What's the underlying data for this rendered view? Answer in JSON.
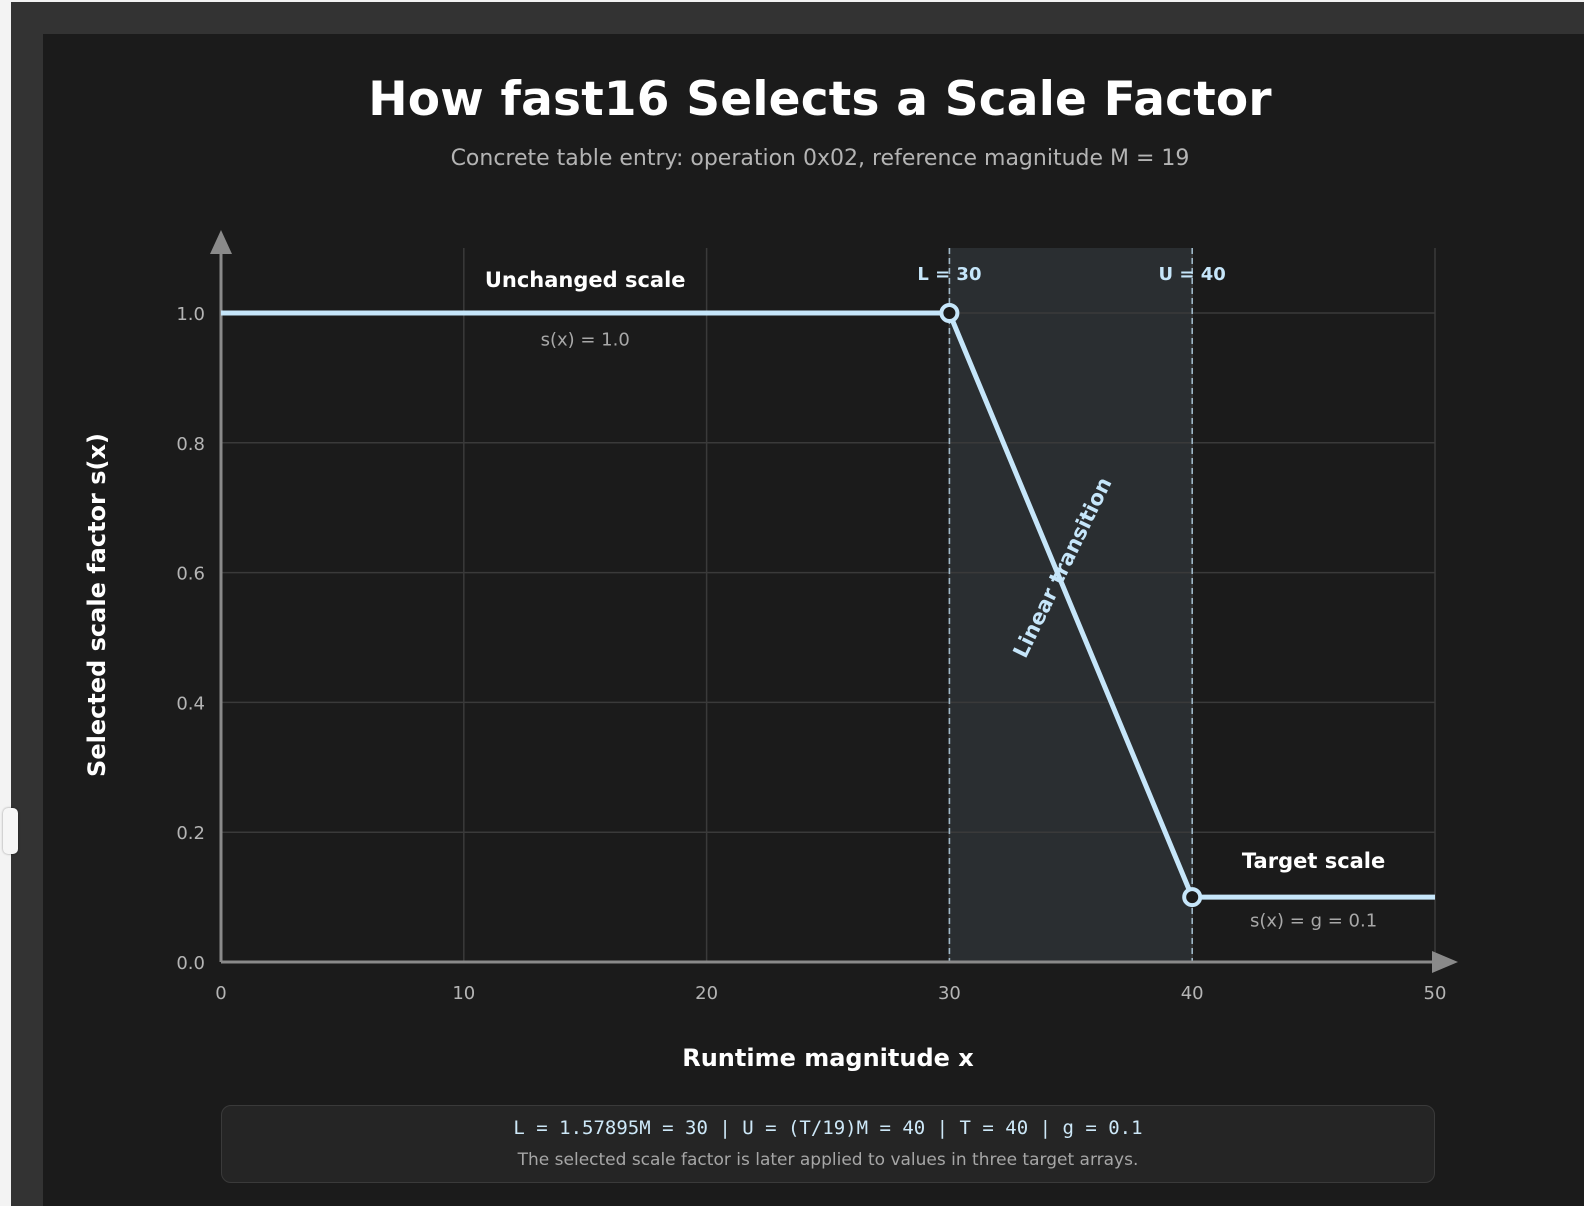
{
  "title": "How fast16 Selects a Scale Factor",
  "subtitle": "Concrete table entry: operation 0x02, reference magnitude M = 19",
  "colors": {
    "line": "#c6e6fa",
    "band": "#2a2e31",
    "grid": "#3a3a3a",
    "axis": "#8a8a8a",
    "panel": "#1b1b1b"
  },
  "chart_data": {
    "type": "line",
    "title": "How fast16 Selects a Scale Factor",
    "subtitle": "Concrete table entry: operation 0x02, reference magnitude M = 19",
    "xlabel": "Runtime magnitude x",
    "ylabel": "Selected scale factor s(x)",
    "xlim": [
      0,
      50
    ],
    "ylim": [
      0,
      1.0
    ],
    "grid": true,
    "x_ticks": [
      0,
      10,
      20,
      30,
      40,
      50
    ],
    "y_ticks": [
      0.0,
      0.2,
      0.4,
      0.6,
      0.8,
      1.0
    ],
    "x_tick_labels": [
      "0",
      "10",
      "20",
      "30",
      "40",
      "50"
    ],
    "y_tick_labels": [
      "0.0",
      "0.2",
      "0.4",
      "0.6",
      "0.8",
      "1.0"
    ],
    "series": [
      {
        "x": [
          0,
          30,
          40,
          50
        ],
        "y": [
          1.0,
          1.0,
          0.1,
          0.1
        ]
      }
    ],
    "markers": [
      {
        "x": 30,
        "y": 1.0
      },
      {
        "x": 40,
        "y": 0.1
      }
    ],
    "shaded_region": {
      "x": [
        30,
        40
      ]
    },
    "threshold_lines": [
      {
        "x": 30,
        "label": "L = 30"
      },
      {
        "x": 40,
        "label": "U = 40"
      }
    ],
    "annotations": [
      {
        "text": "Unchanged scale",
        "x": 15,
        "y": 1.04,
        "bold": true
      },
      {
        "text": "s(x) = 1.0",
        "x": 15,
        "y": 0.95,
        "bold": false
      },
      {
        "text": "Linear transition",
        "x": 35,
        "y": 0.6,
        "bold": true,
        "rotated": true
      },
      {
        "text": "Target scale",
        "x": 45,
        "y": 0.145,
        "bold": true
      },
      {
        "text": "s(x) = g = 0.1",
        "x": 45,
        "y": 0.055,
        "bold": false
      }
    ]
  },
  "footer": {
    "formula": "L = 1.57895M = 30 | U = (T/19)M = 40 | T = 40 | g = 0.1",
    "note": "The selected scale factor is later applied to values in three target arrays."
  }
}
